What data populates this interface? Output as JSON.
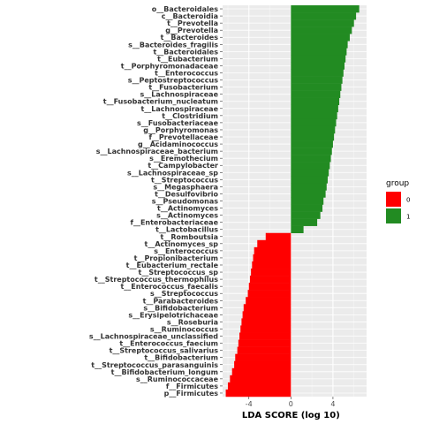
{
  "chart_data": {
    "type": "bar",
    "orientation": "horizontal",
    "xlabel": "LDA SCORE (log 10)",
    "ylabel": "",
    "xlim": [
      -6.5,
      7.2
    ],
    "xticks": [
      -4,
      0,
      4
    ],
    "xtick_labels": [
      "-4",
      "0",
      "4"
    ],
    "legend": {
      "title": "group",
      "placement": "right",
      "entries": [
        {
          "label": "0",
          "color": "#ff0000"
        },
        {
          "label": "1",
          "color": "#228b22"
        }
      ]
    },
    "grid": true,
    "categories": [
      "o__Bacteroidales",
      "c__Bacteroidia",
      "t__Prevotella",
      "g__Prevotella",
      "t__Bacteroides",
      "s__Bacteroides_fragilis",
      "t__Bacteroidales",
      "t__Eubacterium",
      "t__Porphyromonadaceae",
      "t__Enterococcus",
      "s__Peptostreptococcus",
      "t__Fusobacterium",
      "s__Lachnospiraceae",
      "t__Fusobacterium_nucleatum",
      "t__Lachnospiraceae",
      "t__Clostridium",
      "s__Fusobacteriaceae",
      "g__Porphyromonas",
      "f__Prevotellaceae",
      "g__Acidaminococcus",
      "s__Lachnospiraceae_bacterium",
      "s__Eremothecium",
      "t__Campylobacter",
      "s__Lachnospiraceae_sp",
      "t__Streptococcus",
      "s__Megasphaera",
      "t__Desulfovibrio",
      "s__Pseudomonas",
      "t__Actinomyces",
      "s__Actinomyces",
      "f__Enterobacteriaceae",
      "t__Lactobacillus",
      "t__Romboutsia",
      "t__Actinomyces_sp",
      "s__Enterococcus",
      "t__Propionibacterium",
      "t__Eubacterium_rectale",
      "t__Streptococcus_sp",
      "t__Streptococcus_thermophilus",
      "t__Enterococcus_faecalis",
      "s__Streptococcus",
      "t__Parabacteroides",
      "s__Bifidobacterium",
      "s__Erysipelotrichaceae",
      "s__Roseburia",
      "s__Ruminococcus",
      "s__Lachnospiraceae_unclassified",
      "t__Enterococcus_faecium",
      "t__Streptococcus_salivarius",
      "t__Bifidobacterium",
      "t__Streptococcus_parasanguinis",
      "t__Bifidobacterium_longum",
      "s__Ruminococcaceae",
      "f__Firmicutes",
      "p__Firmicutes"
    ],
    "values": [
      6.5,
      6.2,
      6.0,
      5.8,
      5.6,
      5.4,
      5.3,
      5.2,
      5.1,
      5.0,
      4.9,
      4.8,
      4.7,
      4.6,
      4.5,
      4.4,
      4.3,
      4.2,
      4.1,
      4.0,
      3.9,
      3.8,
      3.7,
      3.6,
      3.5,
      3.4,
      3.3,
      3.1,
      3.0,
      2.8,
      2.5,
      1.2,
      -2.4,
      -3.2,
      -3.5,
      -3.6,
      -3.7,
      -3.8,
      -3.9,
      -4.0,
      -4.1,
      -4.3,
      -4.5,
      -4.6,
      -4.7,
      -4.8,
      -4.9,
      -5.0,
      -5.1,
      -5.3,
      -5.4,
      -5.6,
      -5.8,
      -6.0,
      -6.2
    ],
    "groups": [
      "1",
      "1",
      "1",
      "1",
      "1",
      "1",
      "1",
      "1",
      "1",
      "1",
      "1",
      "1",
      "1",
      "1",
      "1",
      "1",
      "1",
      "1",
      "1",
      "1",
      "1",
      "1",
      "1",
      "1",
      "1",
      "1",
      "1",
      "1",
      "1",
      "1",
      "1",
      "1",
      "0",
      "0",
      "0",
      "0",
      "0",
      "0",
      "0",
      "0",
      "0",
      "0",
      "0",
      "0",
      "0",
      "0",
      "0",
      "0",
      "0",
      "0",
      "0",
      "0",
      "0",
      "0",
      "0"
    ]
  }
}
